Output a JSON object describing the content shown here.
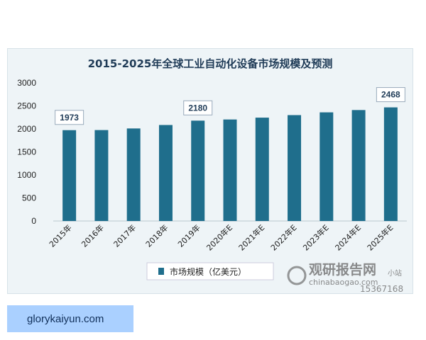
{
  "chart_data": {
    "type": "bar",
    "title": "2015-2025年全球工业自动化设备市场规模及预测",
    "categories": [
      "2015年",
      "2016年",
      "2017年",
      "2018年",
      "2019年",
      "2020年E",
      "2021年E",
      "2022年E",
      "2023年E",
      "2024年E",
      "2025年E"
    ],
    "series": [
      {
        "name": "市场规模（亿美元）",
        "values": [
          1973,
          1975,
          2010,
          2085,
          2180,
          2205,
          2245,
          2300,
          2360,
          2410,
          2468
        ]
      }
    ],
    "yticks": [
      0,
      500,
      1000,
      1500,
      2000,
      2500,
      3000
    ],
    "ylim": [
      0,
      3000
    ],
    "callouts": [
      {
        "index": 0,
        "label": "1973"
      },
      {
        "index": 4,
        "label": "2180"
      },
      {
        "index": 10,
        "label": "2468"
      }
    ],
    "legend_position": "bottom",
    "grid": false,
    "bar_color": "#1f6e8c"
  },
  "watermark": {
    "brand": "观研报告网",
    "domain": "chinabaogao.com",
    "line1": "小站",
    "line2": "15367168"
  },
  "link": {
    "text": "glorykaiyun.com"
  }
}
